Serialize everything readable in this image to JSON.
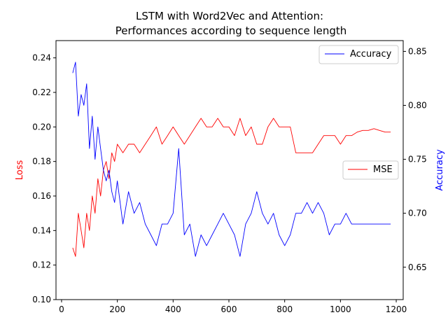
{
  "chart_data": {
    "type": "line",
    "title": "LSTM with Word2Vec and Attention:",
    "subtitle": "Performances according to sequence length",
    "xlabel": "",
    "ylabel_left": "Loss",
    "ylabel_right": "Accuracy",
    "xlim": [
      -20,
      1225
    ],
    "ylim_left": [
      0.1,
      0.25
    ],
    "ylim_right": [
      0.62,
      0.86
    ],
    "x_ticks": [
      0,
      200,
      400,
      600,
      800,
      1000,
      1200
    ],
    "x_tick_labels": [
      "0",
      "200",
      "400",
      "600",
      "800",
      "1000",
      "1200"
    ],
    "y_left_ticks": [
      0.1,
      0.12,
      0.14,
      0.16,
      0.18,
      0.2,
      0.22,
      0.24
    ],
    "y_left_tick_labels": [
      "0.10",
      "0.12",
      "0.14",
      "0.16",
      "0.18",
      "0.20",
      "0.22",
      "0.24"
    ],
    "y_right_ticks": [
      0.65,
      0.7,
      0.75,
      0.8,
      0.85
    ],
    "y_right_tick_labels": [
      "0.65",
      "0.70",
      "0.75",
      "0.80",
      "0.85"
    ],
    "grid": false,
    "series": [
      {
        "name": "MSE",
        "axis": "left",
        "color": "#ff0000",
        "legend_position": "center-right",
        "x": [
          40,
          50,
          60,
          70,
          80,
          90,
          100,
          110,
          120,
          130,
          140,
          150,
          160,
          170,
          180,
          190,
          200,
          220,
          240,
          260,
          280,
          300,
          320,
          340,
          360,
          380,
          400,
          420,
          440,
          460,
          480,
          500,
          520,
          540,
          560,
          580,
          600,
          620,
          640,
          660,
          680,
          700,
          720,
          740,
          760,
          780,
          800,
          820,
          840,
          860,
          880,
          900,
          920,
          940,
          960,
          980,
          1000,
          1020,
          1040,
          1060,
          1080,
          1100,
          1120,
          1140,
          1160,
          1180
        ],
        "values": [
          0.13,
          0.125,
          0.15,
          0.14,
          0.13,
          0.15,
          0.14,
          0.16,
          0.15,
          0.17,
          0.16,
          0.175,
          0.18,
          0.17,
          0.185,
          0.18,
          0.19,
          0.185,
          0.19,
          0.19,
          0.185,
          0.19,
          0.195,
          0.2,
          0.19,
          0.195,
          0.2,
          0.195,
          0.19,
          0.195,
          0.2,
          0.205,
          0.2,
          0.2,
          0.205,
          0.2,
          0.2,
          0.195,
          0.205,
          0.195,
          0.2,
          0.19,
          0.19,
          0.2,
          0.205,
          0.2,
          0.2,
          0.2,
          0.185,
          0.185,
          0.185,
          0.185,
          0.19,
          0.195,
          0.195,
          0.195,
          0.19,
          0.195,
          0.195,
          0.197,
          0.198,
          0.198,
          0.199,
          0.198,
          0.197,
          0.197
        ]
      },
      {
        "name": "Accuracy",
        "axis": "right",
        "color": "#0000ff",
        "legend_position": "top-right",
        "x": [
          40,
          50,
          60,
          70,
          80,
          90,
          100,
          110,
          120,
          130,
          140,
          150,
          160,
          170,
          180,
          190,
          200,
          220,
          240,
          260,
          280,
          300,
          320,
          340,
          360,
          380,
          400,
          420,
          440,
          460,
          480,
          500,
          520,
          540,
          560,
          580,
          600,
          620,
          640,
          660,
          680,
          700,
          720,
          740,
          760,
          780,
          800,
          820,
          840,
          860,
          880,
          900,
          920,
          940,
          960,
          980,
          1000,
          1020,
          1040,
          1060,
          1080,
          1100,
          1120,
          1140,
          1160,
          1180
        ],
        "values": [
          0.83,
          0.84,
          0.79,
          0.81,
          0.8,
          0.82,
          0.76,
          0.79,
          0.75,
          0.78,
          0.76,
          0.74,
          0.73,
          0.74,
          0.72,
          0.71,
          0.73,
          0.69,
          0.72,
          0.7,
          0.71,
          0.69,
          0.68,
          0.67,
          0.69,
          0.69,
          0.7,
          0.76,
          0.68,
          0.69,
          0.66,
          0.68,
          0.67,
          0.68,
          0.69,
          0.7,
          0.69,
          0.68,
          0.66,
          0.69,
          0.7,
          0.72,
          0.7,
          0.69,
          0.7,
          0.68,
          0.67,
          0.68,
          0.7,
          0.7,
          0.71,
          0.7,
          0.71,
          0.7,
          0.68,
          0.69,
          0.69,
          0.7,
          0.69,
          0.69,
          0.69,
          0.69,
          0.69,
          0.69,
          0.69,
          0.69
        ]
      }
    ]
  },
  "colors": {
    "mse": "#ff0000",
    "accuracy": "#0000ff"
  }
}
